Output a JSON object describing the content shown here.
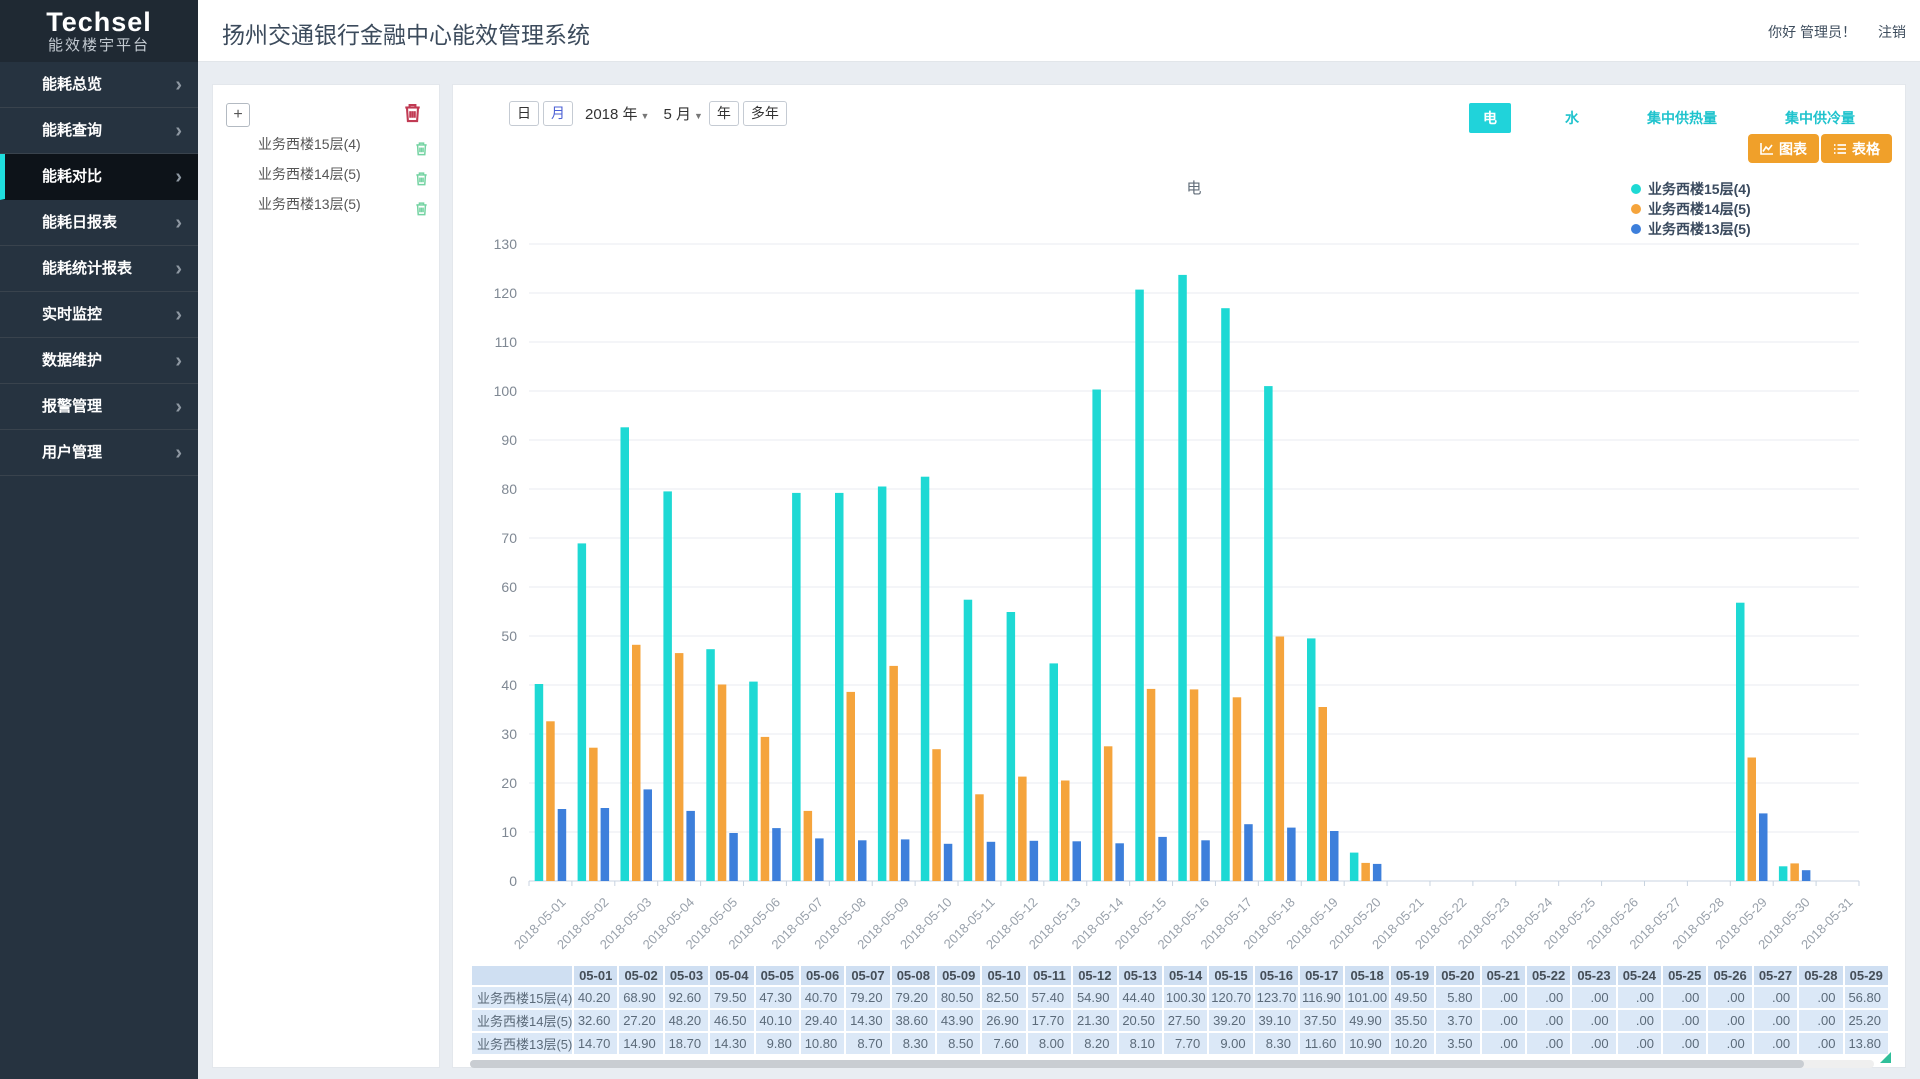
{
  "header": {
    "logo_title": "Techsel",
    "logo_subtitle": "能效楼宇平台",
    "title": "扬州交通银行金融中心能效管理系统",
    "greeting": "你好 管理员！",
    "logout": "注销"
  },
  "sidebar": {
    "active_index": 2,
    "items": [
      "能耗总览",
      "能耗查询",
      "能耗对比",
      "能耗日报表",
      "能耗统计报表",
      "实时监控",
      "数据维护",
      "报警管理",
      "用户管理"
    ]
  },
  "selector_panel": {
    "add_label": "+",
    "items": [
      "业务西楼15层(4)",
      "业务西楼14层(5)",
      "业务西楼13层(5)"
    ]
  },
  "controls": {
    "day_label": "日",
    "month_label": "月",
    "year_select": "2018 年",
    "month_select": "5 月",
    "year_btn": "年",
    "multi_year_btn": "多年"
  },
  "energy_tabs": {
    "active_index": 0,
    "items": [
      "电",
      "水",
      "集中供热量",
      "集中供冷量"
    ]
  },
  "view_buttons": {
    "chart_label": "图表",
    "table_label": "表格"
  },
  "chart_data": {
    "type": "bar",
    "title": "电",
    "ylim": [
      0,
      130
    ],
    "ytick_step": 10,
    "grid": true,
    "legend_position": "top-right",
    "x": [
      "2018-05-01",
      "2018-05-02",
      "2018-05-03",
      "2018-05-04",
      "2018-05-05",
      "2018-05-06",
      "2018-05-07",
      "2018-05-08",
      "2018-05-09",
      "2018-05-10",
      "2018-05-11",
      "2018-05-12",
      "2018-05-13",
      "2018-05-14",
      "2018-05-15",
      "2018-05-16",
      "2018-05-17",
      "2018-05-18",
      "2018-05-19",
      "2018-05-20",
      "2018-05-21",
      "2018-05-22",
      "2018-05-23",
      "2018-05-24",
      "2018-05-25",
      "2018-05-26",
      "2018-05-27",
      "2018-05-28",
      "2018-05-29",
      "2018-05-30",
      "2018-05-31"
    ],
    "series": [
      {
        "name": "业务西楼15层(4)",
        "color": "#1ed9d4",
        "values": [
          40.2,
          68.9,
          92.6,
          79.5,
          47.3,
          40.7,
          79.2,
          79.2,
          80.5,
          82.5,
          57.4,
          54.9,
          44.4,
          100.3,
          120.7,
          123.7,
          116.9,
          101.0,
          49.5,
          5.8,
          0,
          0,
          0,
          0,
          0,
          0,
          0,
          0,
          56.8,
          3.0,
          0
        ]
      },
      {
        "name": "业务西楼14层(5)",
        "color": "#f5a43c",
        "values": [
          32.6,
          27.2,
          48.2,
          46.5,
          40.1,
          29.4,
          14.3,
          38.6,
          43.9,
          26.9,
          17.7,
          21.3,
          20.5,
          27.5,
          39.2,
          39.1,
          37.5,
          49.9,
          35.5,
          3.7,
          0,
          0,
          0,
          0,
          0,
          0,
          0,
          0,
          25.2,
          3.6,
          0
        ]
      },
      {
        "name": "业务西楼13层(5)",
        "color": "#3d7fdb",
        "values": [
          14.7,
          14.9,
          18.7,
          14.3,
          9.8,
          10.8,
          8.7,
          8.3,
          8.5,
          7.6,
          8.0,
          8.2,
          8.1,
          7.7,
          9.0,
          8.3,
          11.6,
          10.9,
          10.2,
          3.5,
          0,
          0,
          0,
          0,
          0,
          0,
          0,
          0,
          13.8,
          2.2,
          0
        ]
      }
    ]
  },
  "table": {
    "visible_columns": 29
  },
  "colors": {
    "accent_cyan": "#20d3da",
    "button_orange": "#f0a02a",
    "trash_red": "#c13b54",
    "trash_green": "#74d3a2",
    "sidebar_bg": "#263340",
    "active_item_bg": "#0d1319"
  }
}
